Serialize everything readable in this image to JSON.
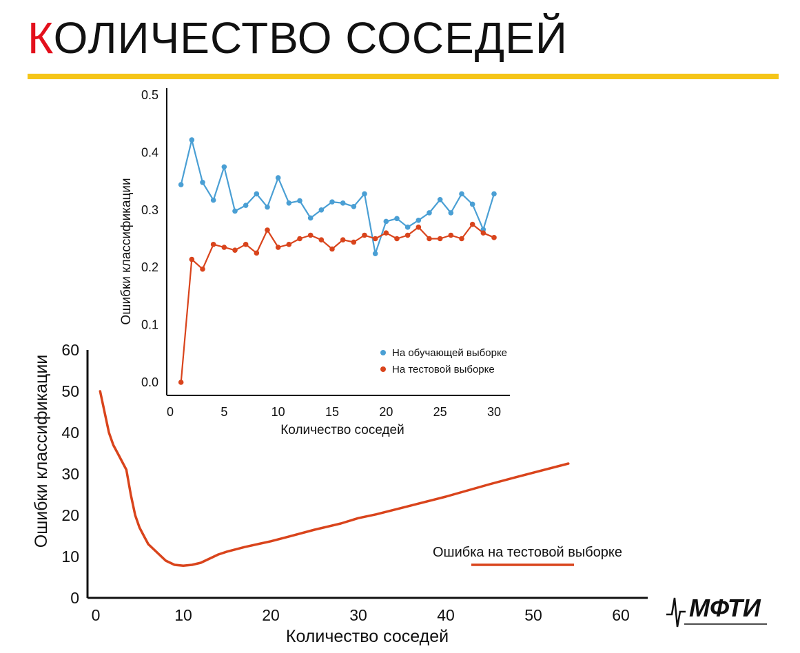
{
  "header": {
    "title_first_letter": "К",
    "title_rest": "ОЛИЧЕСТВО СОСЕДЕЙ",
    "accent_color": "#e3101c",
    "rule_color": "#f5c518"
  },
  "logo": {
    "text": "МФТИ"
  },
  "chart_data": [
    {
      "type": "line",
      "title": "",
      "xlabel": "Количество соседей",
      "ylabel": "Ошибки классификации",
      "xlim": [
        0,
        60
      ],
      "ylim": [
        0,
        60
      ],
      "x_ticks": [
        0,
        10,
        20,
        30,
        40,
        50,
        60
      ],
      "y_ticks": [
        0,
        10,
        20,
        30,
        40,
        50,
        60
      ],
      "legend_position": "bottom-right",
      "series": [
        {
          "name": "Ошибка на тестовой выборке",
          "color": "#d9441c",
          "x": [
            0.5,
            1,
            1.5,
            2,
            2.5,
            3,
            3.5,
            4,
            4.5,
            5,
            5.5,
            6,
            7,
            8,
            9,
            10,
            11,
            12,
            13,
            14,
            15,
            17,
            20,
            22,
            25,
            28,
            30,
            32,
            35,
            40,
            45,
            48,
            50,
            54
          ],
          "values": [
            50,
            45,
            40,
            37,
            35,
            33,
            31,
            25,
            20,
            17,
            15,
            13,
            11,
            9,
            8,
            7.8,
            8,
            8.5,
            9.5,
            10.5,
            11.2,
            12.3,
            13.7,
            14.8,
            16.5,
            18,
            19.3,
            20.2,
            21.8,
            24.5,
            27.5,
            29.2,
            30.3,
            32.5
          ]
        }
      ]
    },
    {
      "type": "line",
      "title": "",
      "xlabel": "Количество соседей",
      "ylabel": "Ошибки классификации",
      "xlim": [
        0,
        31.5
      ],
      "ylim": [
        0,
        0.5
      ],
      "x_ticks": [
        0,
        5,
        10,
        15,
        20,
        25,
        30
      ],
      "y_ticks": [
        0.0,
        0.1,
        0.2,
        0.3,
        0.4,
        0.5
      ],
      "y_tick_labels": [
        "0.0",
        "0.1",
        "0.2",
        "0.3",
        "0.4",
        "0.5"
      ],
      "legend_position": "bottom-right",
      "series": [
        {
          "name": "На обучающей выборке",
          "color": "#4a9fd4",
          "x": [
            1,
            2,
            3,
            4,
            5,
            6,
            7,
            8,
            9,
            10,
            11,
            12,
            13,
            14,
            15,
            16,
            17,
            18,
            19,
            20,
            21,
            22,
            23,
            24,
            25,
            26,
            27,
            28,
            29,
            30
          ],
          "values": [
            0.344,
            0.422,
            0.348,
            0.317,
            0.375,
            0.298,
            0.308,
            0.328,
            0.305,
            0.356,
            0.312,
            0.316,
            0.286,
            0.3,
            0.314,
            0.312,
            0.306,
            0.328,
            0.224,
            0.28,
            0.285,
            0.27,
            0.282,
            0.295,
            0.318,
            0.295,
            0.328,
            0.31,
            0.266,
            0.328
          ]
        },
        {
          "name": "На тестовой выборке",
          "color": "#d9441c",
          "x": [
            1,
            2,
            3,
            4,
            5,
            6,
            7,
            8,
            9,
            10,
            11,
            12,
            13,
            14,
            15,
            16,
            17,
            18,
            19,
            20,
            21,
            22,
            23,
            24,
            25,
            26,
            27,
            28,
            29,
            30
          ],
          "values": [
            0.0,
            0.214,
            0.197,
            0.24,
            0.235,
            0.23,
            0.24,
            0.225,
            0.265,
            0.235,
            0.24,
            0.25,
            0.256,
            0.248,
            0.232,
            0.248,
            0.244,
            0.256,
            0.25,
            0.26,
            0.25,
            0.256,
            0.27,
            0.25,
            0.25,
            0.256,
            0.25,
            0.275,
            0.26,
            0.252
          ]
        }
      ]
    }
  ]
}
